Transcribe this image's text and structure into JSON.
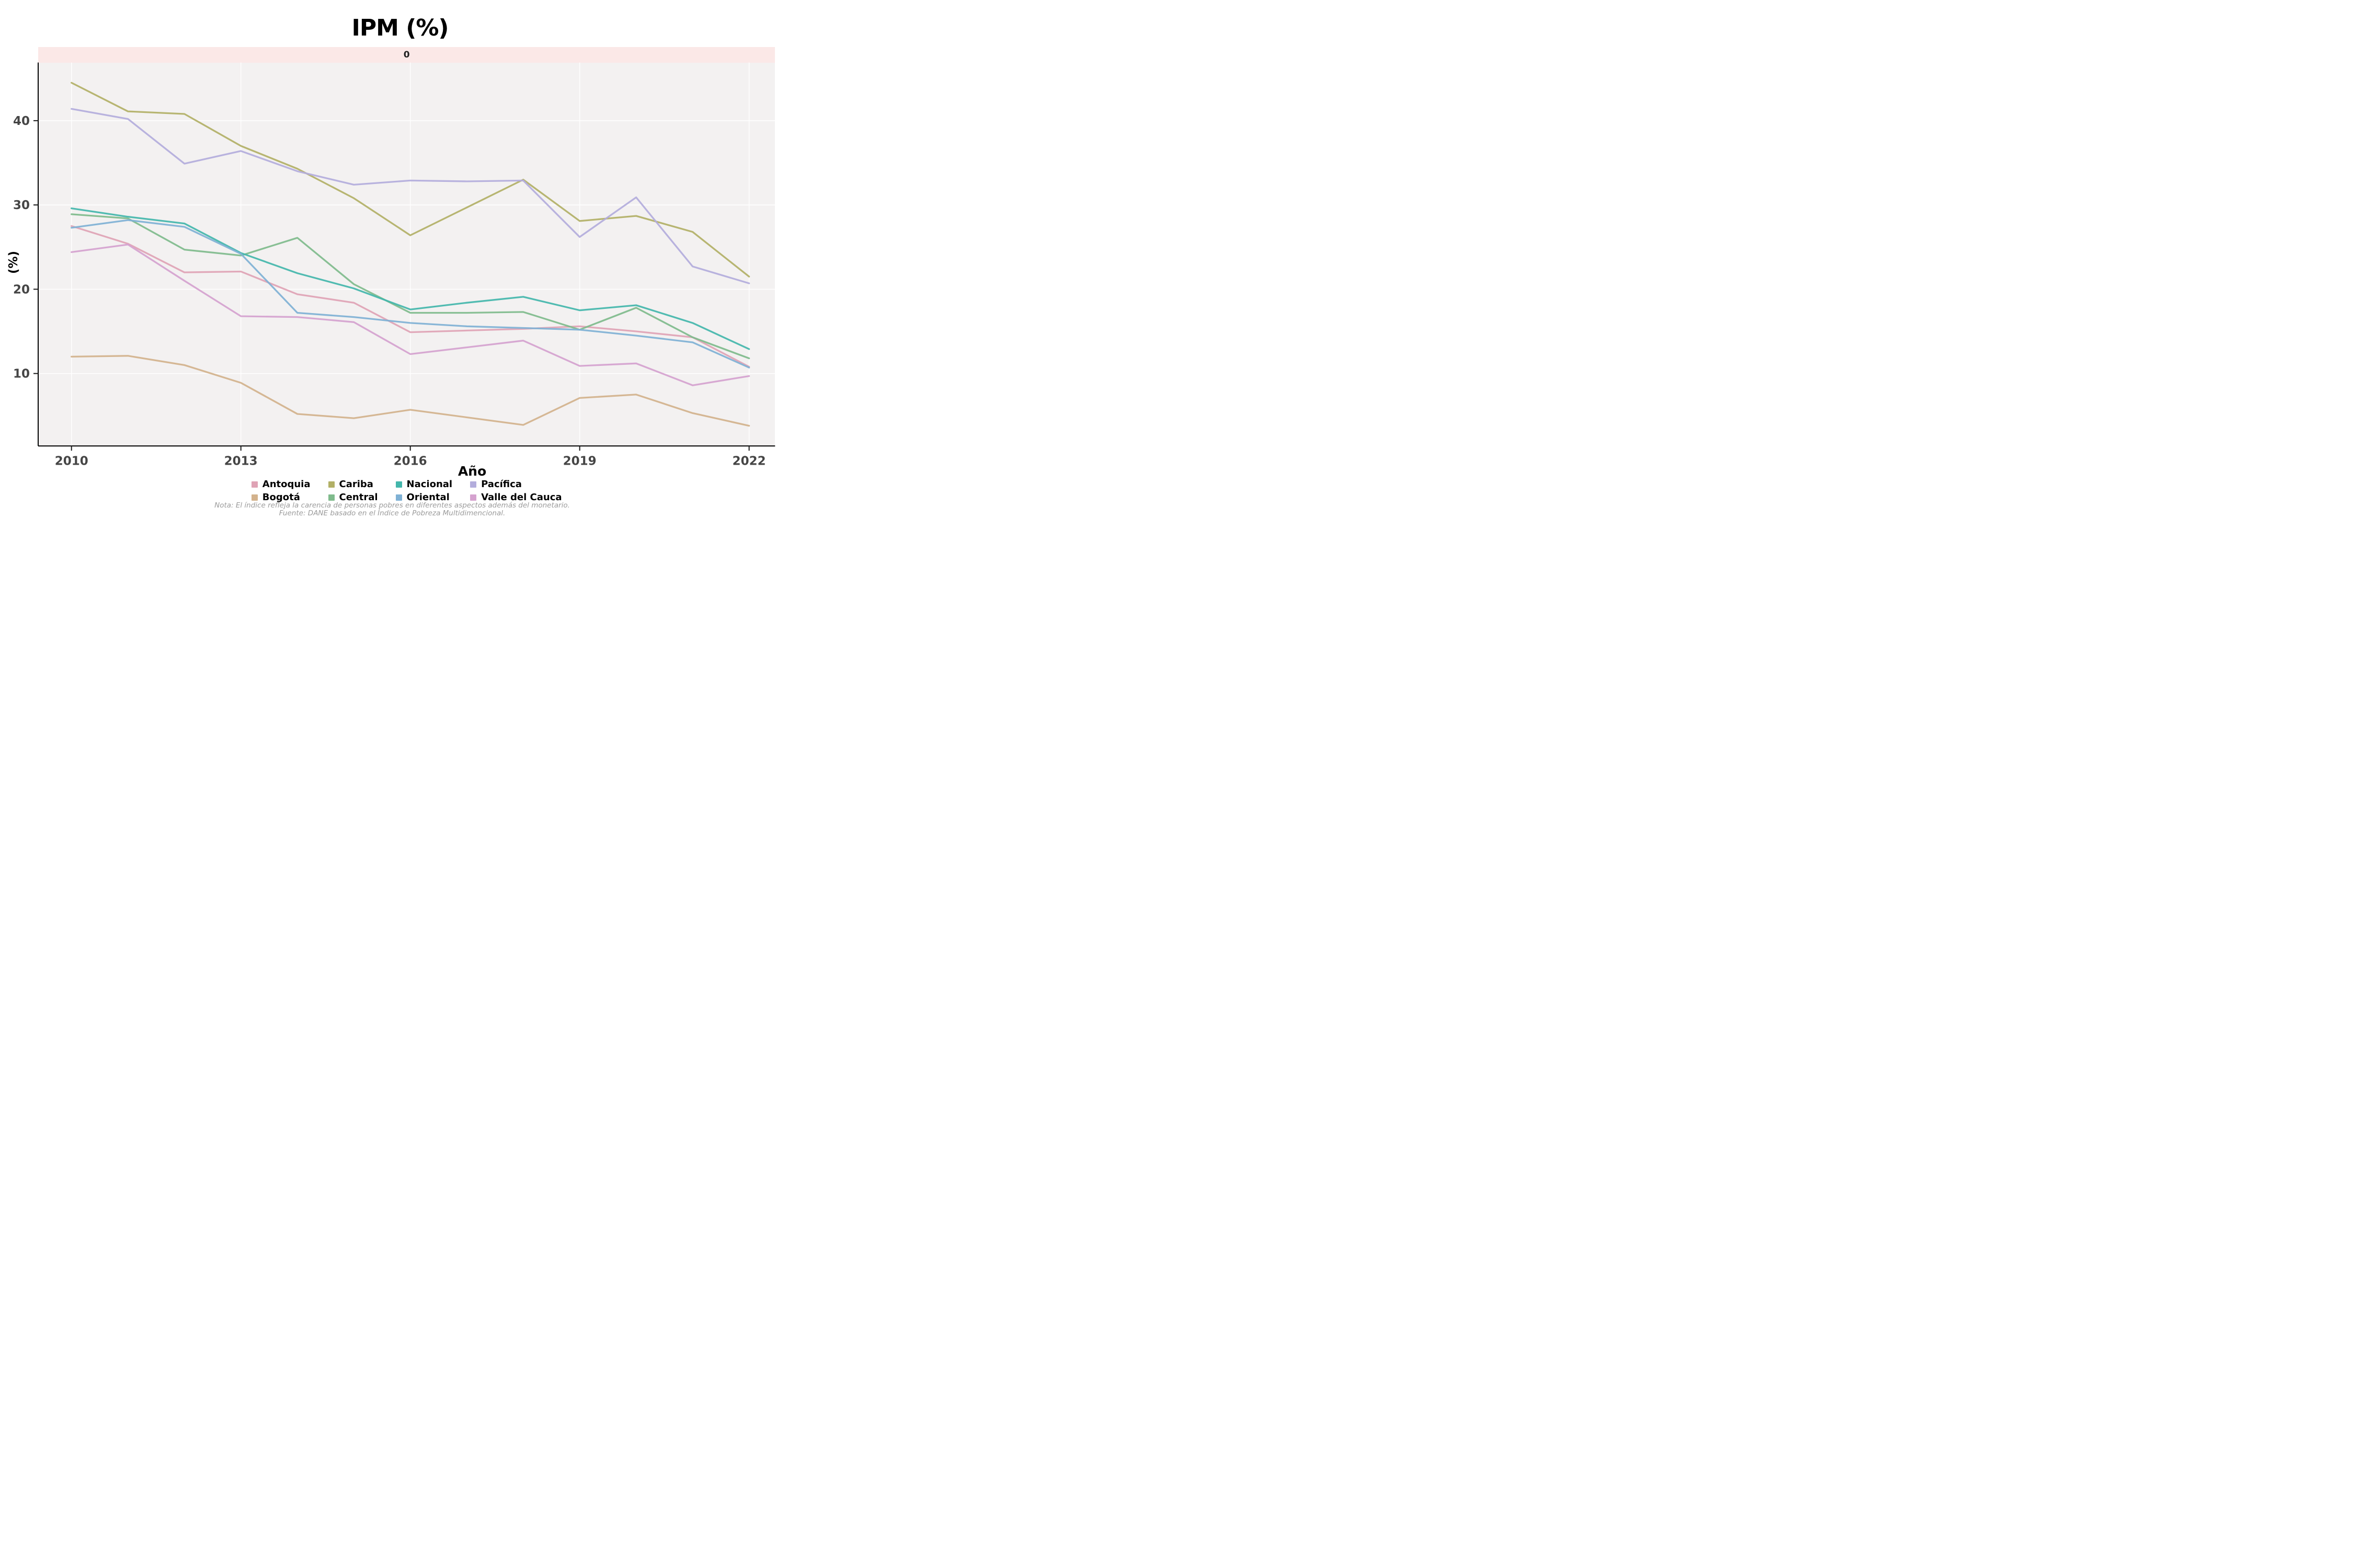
{
  "title": "IPM (%)",
  "facet_strip": {
    "label": "0",
    "bg_color": "#FBE8E7",
    "text_color": "#1f1f1f"
  },
  "axes": {
    "x_title": "Año",
    "y_title": "(%)",
    "x_tick_labels": [
      "2010",
      "2013",
      "2016",
      "2019",
      "2022"
    ],
    "y_tick_labels": [
      "10",
      "20",
      "30",
      "40"
    ]
  },
  "captions": {
    "note": "Nota: El índice refleja la carencia de personas pobres en diferentes aspectos además del monetario.",
    "source": "Fuente: DANE basado en el Índice de Pobreza Multidimencional."
  },
  "colors": {
    "panel_bg": "#F3F1F1",
    "grid": "#FFFFFF",
    "axis": "#000000",
    "tick_text": "#454545"
  },
  "chart_data": {
    "type": "line",
    "title": "IPM (%)",
    "xlabel": "Año",
    "ylabel": "(%)",
    "x": [
      2010,
      2011,
      2012,
      2013,
      2014,
      2015,
      2016,
      2017,
      2018,
      2019,
      2020,
      2021,
      2022
    ],
    "x_ticks": [
      2010,
      2013,
      2016,
      2019,
      2022
    ],
    "y_ticks": [
      10,
      20,
      30,
      40
    ],
    "xlim": [
      2009.41,
      2022.46
    ],
    "ylim": [
      1.4,
      46.9
    ],
    "grid": "major gridlines only, white on light gray panel",
    "legend_position": "bottom",
    "series": [
      {
        "key": "antoquia",
        "label": "Antoquia",
        "color": "#DFA3B5",
        "values": [
          27.5,
          25.4,
          22.0,
          22.1,
          19.4,
          18.4,
          14.9,
          15.1,
          15.3,
          15.6,
          15.0,
          14.3,
          10.8
        ]
      },
      {
        "key": "bogota",
        "label": "Bogotá",
        "color": "#D3B28C",
        "values": [
          12.0,
          12.1,
          11.0,
          8.9,
          5.2,
          4.7,
          5.7,
          4.8,
          3.9,
          7.1,
          7.5,
          5.3,
          3.8
        ]
      },
      {
        "key": "cariba",
        "label": "Cariba",
        "color": "#B2B066",
        "values": [
          44.5,
          41.1,
          40.8,
          37.0,
          34.3,
          30.8,
          26.4,
          29.7,
          33.0,
          28.1,
          28.7,
          26.8,
          21.5
        ]
      },
      {
        "key": "central",
        "label": "Central",
        "color": "#7FBB8C",
        "values": [
          28.9,
          28.4,
          24.7,
          24.0,
          26.1,
          20.6,
          17.2,
          17.2,
          17.3,
          15.2,
          17.8,
          14.3,
          11.8
        ]
      },
      {
        "key": "nacional",
        "label": "Nacional",
        "color": "#43B6AB",
        "values": [
          29.6,
          28.6,
          27.8,
          24.3,
          21.9,
          20.1,
          17.6,
          18.4,
          19.1,
          17.5,
          18.1,
          16.0,
          12.9
        ]
      },
      {
        "key": "oriental",
        "label": "Oriental",
        "color": "#7FB1D5",
        "values": [
          27.3,
          28.2,
          27.4,
          24.2,
          17.2,
          16.7,
          16.0,
          15.6,
          15.4,
          15.2,
          14.5,
          13.7,
          10.7
        ]
      },
      {
        "key": "pacifica",
        "label": "Pacífica",
        "color": "#B3ADDC",
        "values": [
          41.4,
          40.2,
          34.9,
          36.4,
          34.0,
          32.4,
          32.9,
          32.8,
          32.9,
          26.2,
          30.9,
          22.7,
          20.7
        ]
      },
      {
        "key": "valle_del_cauca",
        "label": "Valle del Cauca",
        "color": "#D5A2CF",
        "values": [
          24.4,
          25.3,
          21.0,
          16.8,
          16.7,
          16.1,
          12.3,
          13.1,
          13.9,
          10.9,
          11.2,
          8.6,
          9.7
        ]
      }
    ]
  }
}
